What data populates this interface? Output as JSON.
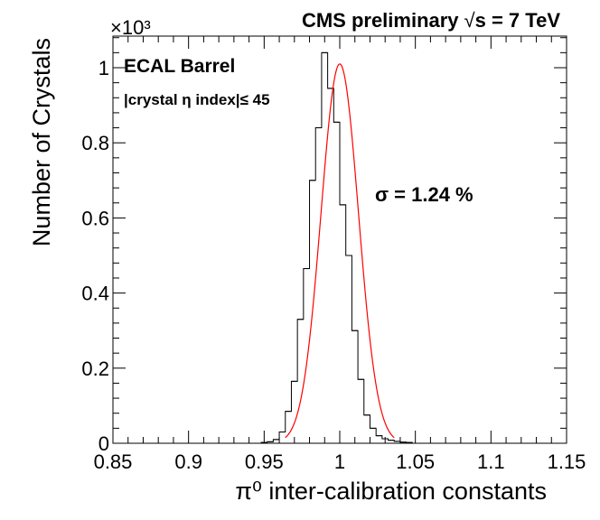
{
  "chart_data": {
    "type": "bar",
    "title": "CMS preliminary",
    "energy_label": "s = 7 TeV",
    "energy_prefix": "√",
    "xlabel": "π⁰ inter-calibration constants",
    "ylabel": "Number of Crystals",
    "y_multiplier": "×10³",
    "xlim": [
      0.85,
      1.15
    ],
    "ylim": [
      0,
      1.1
    ],
    "x_tick_labels": [
      "0.85",
      "0.9",
      "0.95",
      "1",
      "1.05",
      "1.1",
      "1.15"
    ],
    "x_ticks": [
      0.85,
      0.9,
      0.95,
      1.0,
      1.05,
      1.1,
      1.15
    ],
    "y_tick_labels": [
      "0",
      "0.2",
      "0.4",
      "0.6",
      "0.8",
      "1"
    ],
    "y_ticks": [
      0,
      0.2,
      0.4,
      0.6,
      0.8,
      1.0
    ],
    "grid": false,
    "annotations": {
      "detector": "ECAL Barrel",
      "selection": "|crystal η index|≤ 45",
      "sigma": "σ = 1.24 %"
    },
    "series": [
      {
        "kind": "histogram",
        "color": "#000000",
        "bin_width": 0.004,
        "bin_edges_start": 0.948,
        "values": [
          0.002,
          0.004,
          0.01,
          0.03,
          0.085,
          0.165,
          0.33,
          0.465,
          0.7,
          0.84,
          1.04,
          0.945,
          0.855,
          0.635,
          0.5,
          0.3,
          0.17,
          0.075,
          0.04,
          0.02,
          0.012,
          0.008,
          0.005,
          0.003,
          0.002
        ]
      },
      {
        "kind": "gaussian_fit",
        "color": "#ff0000",
        "amplitude": 1.01,
        "mean": 1.0,
        "sigma": 0.0124,
        "x_range": [
          0.964,
          1.036
        ]
      }
    ]
  },
  "colors": {
    "axis": "#000000",
    "histogram": "#000000",
    "fit": "#ff0000"
  }
}
